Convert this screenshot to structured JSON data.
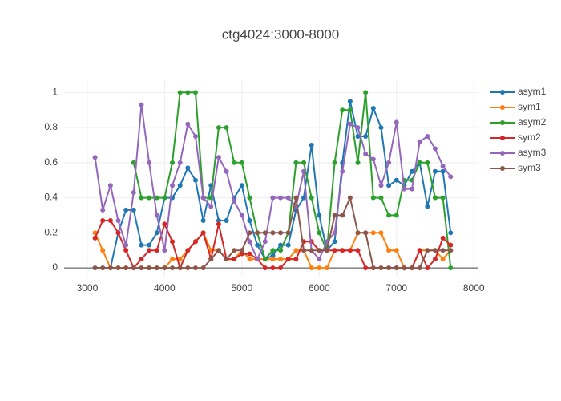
{
  "chart_data": {
    "type": "line",
    "title": "ctg4024:3000-8000",
    "x": [
      3100,
      3200,
      3300,
      3400,
      3500,
      3600,
      3700,
      3800,
      3900,
      4000,
      4100,
      4200,
      4300,
      4400,
      4500,
      4600,
      4700,
      4800,
      4900,
      5000,
      5100,
      5200,
      5300,
      5400,
      5500,
      5600,
      5700,
      5800,
      5900,
      6000,
      6100,
      6200,
      6300,
      6400,
      6500,
      6600,
      6700,
      6800,
      6900,
      7000,
      7100,
      7200,
      7300,
      7400,
      7500,
      7600,
      7700
    ],
    "series": [
      {
        "name": "asym1",
        "color": "#1f77b4",
        "values": [
          0,
          0,
          0,
          0.2,
          0.33,
          0.33,
          0.13,
          0.13,
          0.2,
          0.4,
          0.4,
          0.47,
          0.57,
          0.5,
          0.27,
          0.47,
          0.27,
          0.27,
          0.4,
          0.47,
          0.27,
          0.13,
          0.05,
          0.07,
          0.13,
          0.13,
          0.33,
          0.4,
          0.7,
          0.3,
          0.1,
          0.15,
          0.6,
          0.95,
          0.75,
          0.75,
          0.91,
          0.8,
          0.47,
          0.5,
          0.47,
          0.55,
          0.6,
          0.35,
          0.55,
          0.55,
          0.2
        ]
      },
      {
        "name": "sym1",
        "color": "#ff7f0e",
        "values": [
          0.2,
          0.1,
          0,
          0,
          0,
          0,
          0,
          0,
          0,
          0,
          0.05,
          0.05,
          0.1,
          0.15,
          0.2,
          0.1,
          0.1,
          0.05,
          0.05,
          0.1,
          0.05,
          0.05,
          0.05,
          0.05,
          0.05,
          0.05,
          0.1,
          0.1,
          0,
          0,
          0,
          0.1,
          0.1,
          0.1,
          0.2,
          0.2,
          0.2,
          0.2,
          0.1,
          0.1,
          0,
          0,
          0.1,
          0.1,
          0.1,
          0.05,
          0.1
        ]
      },
      {
        "name": "asym2",
        "color": "#2ca02c",
        "values": [
          null,
          null,
          null,
          null,
          null,
          0.6,
          0.4,
          0.4,
          0.4,
          0.4,
          0.6,
          1,
          1,
          1,
          0.4,
          0.4,
          0.8,
          0.8,
          0.6,
          0.6,
          0.4,
          0.2,
          0.05,
          0.1,
          0.1,
          0.2,
          0.6,
          0.6,
          0.4,
          0.2,
          0.1,
          0.6,
          0.9,
          0.9,
          0.6,
          1,
          0.4,
          0.4,
          0.3,
          0.3,
          0.5,
          0.5,
          0.6,
          0.6,
          0.4,
          0.4,
          0
        ]
      },
      {
        "name": "sym2",
        "color": "#d62728",
        "values": [
          0.17,
          0.27,
          0.27,
          0.2,
          0.1,
          0,
          0.05,
          0.1,
          0.1,
          0.25,
          0.15,
          0,
          0.1,
          0.15,
          0.2,
          0.05,
          0.25,
          0.05,
          0.05,
          0.08,
          0.08,
          0.05,
          0,
          0,
          0,
          0.05,
          0.05,
          0.15,
          0.15,
          0.1,
          0.1,
          0.1,
          0.1,
          0.1,
          0.1,
          0,
          0,
          0,
          0,
          0,
          0,
          0,
          0.1,
          0,
          0.05,
          0.17,
          0.13
        ]
      },
      {
        "name": "asym3",
        "color": "#9467bd",
        "values": [
          0.63,
          0.33,
          0.47,
          0.27,
          0.13,
          0.43,
          0.93,
          0.6,
          0.3,
          0.1,
          0.47,
          0.6,
          0.82,
          0.75,
          0.4,
          0.35,
          0.63,
          0.55,
          0.38,
          0.3,
          0.15,
          0.05,
          0.15,
          0.4,
          0.4,
          0.4,
          0.35,
          0.55,
          0.1,
          0.05,
          0.15,
          0.2,
          0.55,
          0.82,
          0.8,
          0.65,
          0.62,
          0.47,
          0.6,
          0.83,
          0.45,
          0.45,
          0.72,
          0.75,
          0.68,
          0.58,
          0.52
        ]
      },
      {
        "name": "sym3",
        "color": "#8c564b",
        "values": [
          0,
          0,
          0,
          0,
          0,
          0,
          0,
          0,
          0,
          0,
          0,
          0,
          0,
          0,
          0,
          0.05,
          0.1,
          0.05,
          0.1,
          0.1,
          0.2,
          0.2,
          0.2,
          0.2,
          0.2,
          0.2,
          0.4,
          0.1,
          0.1,
          0.1,
          0.1,
          0.3,
          0.3,
          0.4,
          0.2,
          0.2,
          0,
          0,
          0,
          0,
          0,
          0,
          0,
          0.1,
          0.1,
          0.1,
          0.1
        ]
      }
    ],
    "xlim": [
      2700,
      8060
    ],
    "ylim": [
      -0.05,
      1.07
    ],
    "xticks": [
      3000,
      4000,
      5000,
      6000,
      7000,
      8000
    ],
    "yticks": [
      0,
      0.2,
      0.4,
      0.6,
      0.8,
      1
    ],
    "grid": true
  }
}
